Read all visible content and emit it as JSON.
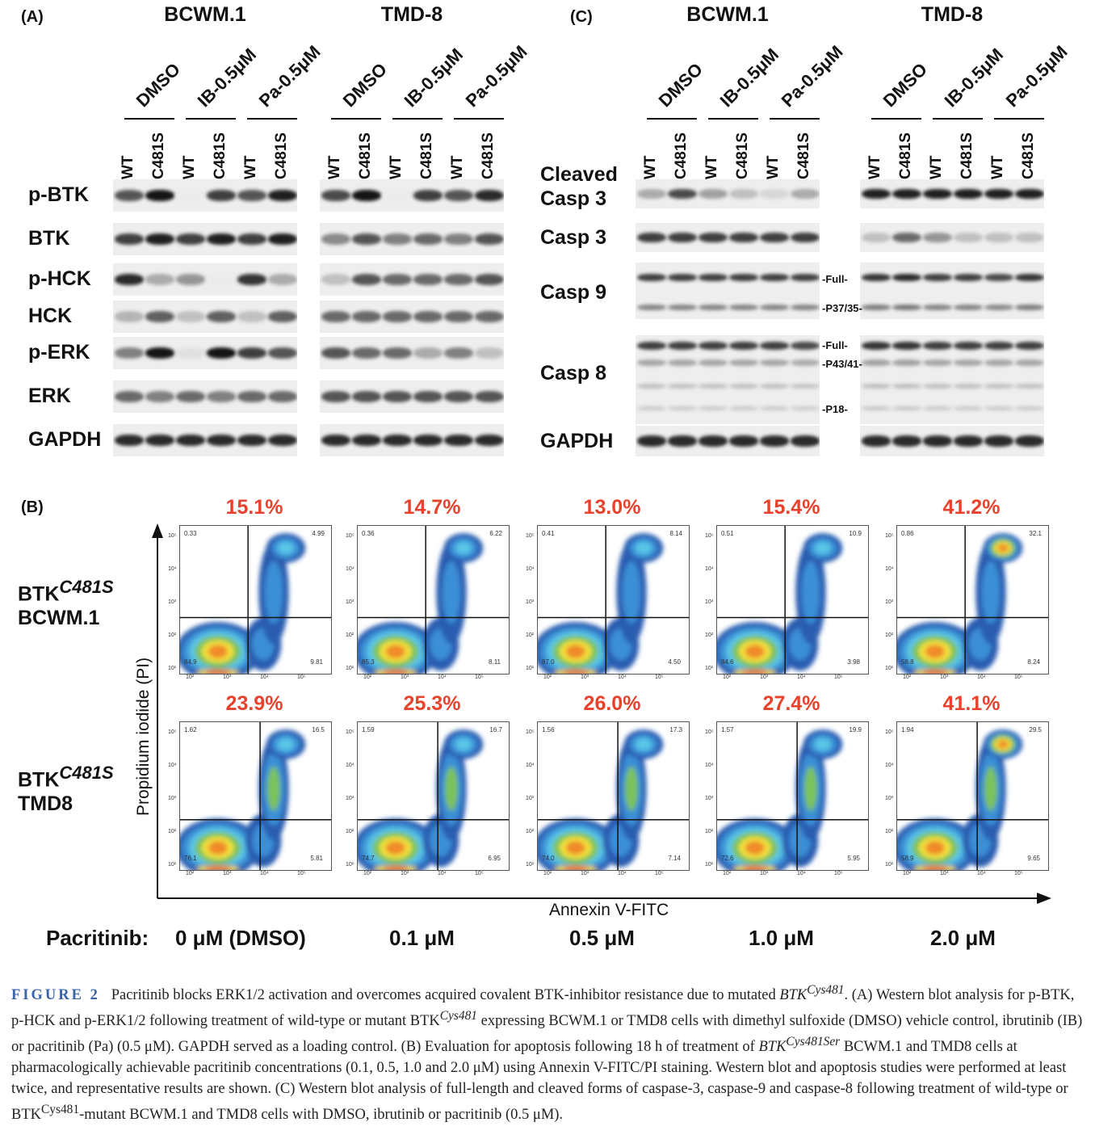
{
  "panels": {
    "a": "(A)",
    "b": "(B)",
    "c": "(C)"
  },
  "cell_lines": [
    "BCWM.1",
    "TMD-8"
  ],
  "treatments": [
    "DMSO",
    "IB-0.5μM",
    "Pa-0.5μM"
  ],
  "lanes": [
    "WT",
    "C481S",
    "WT",
    "C481S",
    "WT",
    "C481S"
  ],
  "panel_a": {
    "rows": [
      {
        "label": "p-BTK",
        "bcwm": [
          0.7,
          1,
          0,
          0.8,
          0.7,
          0.95
        ],
        "tmd": [
          0.75,
          1,
          0,
          0.8,
          0.7,
          0.9
        ]
      },
      {
        "label": "BTK",
        "bcwm": [
          0.8,
          0.95,
          0.8,
          0.95,
          0.8,
          0.95
        ],
        "tmd": [
          0.45,
          0.7,
          0.5,
          0.6,
          0.5,
          0.7
        ]
      },
      {
        "label": "p-HCK",
        "bcwm": [
          0.9,
          0.3,
          0.4,
          0,
          0.85,
          0.3
        ],
        "tmd": [
          0.2,
          0.7,
          0.6,
          0.6,
          0.6,
          0.7
        ]
      },
      {
        "label": "HCK",
        "bcwm": [
          0.25,
          0.65,
          0.2,
          0.65,
          0.2,
          0.65
        ],
        "tmd": [
          0.6,
          0.6,
          0.6,
          0.6,
          0.6,
          0.6
        ]
      },
      {
        "label": "p-ERK",
        "bcwm": [
          0.5,
          1,
          0.05,
          1,
          0.8,
          0.7
        ],
        "tmd": [
          0.7,
          0.6,
          0.6,
          0.3,
          0.5,
          0.2
        ]
      },
      {
        "label": "ERK",
        "bcwm": [
          0.6,
          0.5,
          0.6,
          0.5,
          0.6,
          0.6
        ],
        "tmd": [
          0.7,
          0.7,
          0.7,
          0.7,
          0.7,
          0.7
        ]
      },
      {
        "label": "GAPDH",
        "bcwm": [
          0.9,
          0.9,
          0.9,
          0.9,
          0.9,
          0.9
        ],
        "tmd": [
          0.9,
          0.9,
          0.9,
          0.9,
          0.9,
          0.9
        ]
      }
    ]
  },
  "panel_c": {
    "rows": [
      {
        "label_1": "Cleaved",
        "label": "Casp 3",
        "bcwm": [
          0.3,
          0.75,
          0.35,
          0.2,
          0.1,
          0.3
        ],
        "tmd": [
          0.95,
          0.95,
          0.95,
          0.95,
          0.95,
          0.95
        ]
      },
      {
        "label": "Casp 3",
        "bcwm": [
          0.8,
          0.8,
          0.8,
          0.8,
          0.8,
          0.8
        ],
        "tmd": [
          0.2,
          0.6,
          0.4,
          0.2,
          0.2,
          0.2
        ]
      },
      {
        "label": "Casp 9",
        "bcwm": [
          0.8,
          0.8,
          0.8,
          0.8,
          0.8,
          0.8
        ],
        "tmd": [
          0.85,
          0.9,
          0.8,
          0.8,
          0.75,
          0.85
        ]
      },
      {
        "label": "Casp 8",
        "bcwm": [
          0.8,
          0.8,
          0.8,
          0.8,
          0.8,
          0.75
        ],
        "tmd": [
          0.85,
          0.85,
          0.8,
          0.8,
          0.8,
          0.8
        ]
      },
      {
        "label": "GAPDH",
        "bcwm": [
          0.9,
          0.9,
          0.9,
          0.9,
          0.9,
          0.9
        ],
        "tmd": [
          0.9,
          0.9,
          0.9,
          0.9,
          0.9,
          0.9
        ]
      }
    ],
    "casp9_marks": [
      "-Full-",
      "-P37/35-"
    ],
    "casp8_marks": [
      "-Full-",
      "-P43/41-",
      "-P18-"
    ]
  },
  "panel_b": {
    "row_labels": [
      {
        "gene": "BTK",
        "sup": "C481S",
        "cell": "BCWM.1"
      },
      {
        "gene": "BTK",
        "sup": "C481S",
        "cell": "TMD8"
      }
    ],
    "y_label": "Propidium iodide (PI)",
    "x_label": "Annexin V-FITC",
    "y_ticks": [
      "10⁵",
      "10⁴",
      "10³",
      "10²",
      "10¹"
    ],
    "x_ticks": [
      "10²",
      "10³",
      "10⁴",
      "10⁵"
    ],
    "conc_title": "Pacritinib:",
    "concentrations": [
      "0 μM (DMSO)",
      "0.1 μM",
      "0.5 μM",
      "1.0 μM",
      "2.0 μM"
    ],
    "plots": [
      [
        {
          "pct": "15.1%",
          "ul": "0.33",
          "ur": "4.99",
          "ll": "84.9",
          "lr": "9.81"
        },
        {
          "pct": "14.7%",
          "ul": "0.36",
          "ur": "6.22",
          "ll": "85.3",
          "lr": "8.11"
        },
        {
          "pct": "13.0%",
          "ul": "0.41",
          "ur": "8.14",
          "ll": "87.0",
          "lr": "4.50"
        },
        {
          "pct": "15.4%",
          "ul": "0.51",
          "ur": "10.9",
          "ll": "84.6",
          "lr": "3.98"
        },
        {
          "pct": "41.2%",
          "ul": "0.86",
          "ur": "32.1",
          "ll": "58.8",
          "lr": "8.24"
        }
      ],
      [
        {
          "pct": "23.9%",
          "ul": "1.62",
          "ur": "16.5",
          "ll": "76.1",
          "lr": "5.81"
        },
        {
          "pct": "25.3%",
          "ul": "1.59",
          "ur": "16.7",
          "ll": "74.7",
          "lr": "6.95"
        },
        {
          "pct": "26.0%",
          "ul": "1.56",
          "ur": "17.3",
          "ll": "74.0",
          "lr": "7.14"
        },
        {
          "pct": "27.4%",
          "ul": "1.57",
          "ur": "19.9",
          "ll": "72.6",
          "lr": "5.95"
        },
        {
          "pct": "41.1%",
          "ul": "1.94",
          "ur": "29.5",
          "ll": "58.9",
          "lr": "9.65"
        }
      ]
    ]
  },
  "caption": {
    "fig": "FIGURE 2",
    "t1": "Pacritinib blocks ERK1/2 activation and overcomes acquired covalent BTK-inhibitor resistance due to mutated ",
    "g1": "BTK",
    "s1": "Cys481",
    "t2": ". (A) Western blot analysis for p-BTK, p-HCK and p-ERK1/2 following treatment of wild-type or mutant BTK",
    "s2": "Cys481",
    "t3": " expressing BCWM.1 or TMD8 cells with dimethyl sulfoxide (DMSO) vehicle control, ibrutinib (IB) or pacritinib (Pa) (0.5 μM). GAPDH served as a loading control. (B) Evaluation for apoptosis following 18 h of treatment of ",
    "g2": "BTK",
    "s3": "Cys481Ser",
    "t4": " BCWM.1 and TMD8 cells at pharmacologically achievable pacritinib concentrations (0.1, 0.5, 1.0 and 2.0 μM) using Annexin V-FITC/PI staining. Western blot and apoptosis studies were performed at least twice, and representative results are shown. (C) Western blot analysis of full-length and cleaved forms of caspase-3, caspase-9 and caspase-8 following treatment of wild-type or BTK",
    "s4": "Cys481",
    "t5": "-mutant BCWM.1 and TMD8 cells with DMSO, ibrutinib or pacritinib (0.5 μM)."
  }
}
